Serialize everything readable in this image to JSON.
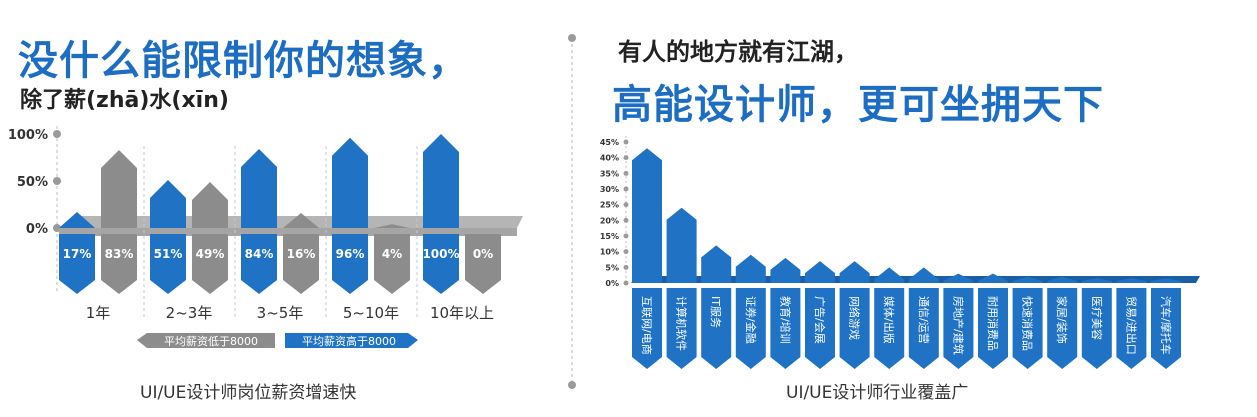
{
  "header_left": {
    "title": "没什么能限制你的想象，",
    "subtitle": "除了薪(zhā)水(xīn)"
  },
  "header_right": {
    "title": "有人的地方就有江湖，",
    "subtitle": "高能设计师，更可坐拥天下"
  },
  "colors": {
    "blue": "#1f72c4",
    "gray": "#8c8c8c",
    "title_blue": "#1d6ec2",
    "axis_dot": "#9a9a9a"
  },
  "chart_data": [
    {
      "type": "bar",
      "caption": "UI/UE设计师岗位薪资增速快",
      "categories": [
        "1年",
        "2~3年",
        "3~5年",
        "5~10年",
        "10年以上"
      ],
      "series": [
        {
          "name": "平均薪资高于8000",
          "color": "#1f72c4",
          "values": [
            17,
            51,
            84,
            96,
            100
          ],
          "labels": [
            "17%",
            "51%",
            "84%",
            "96%",
            "100%"
          ]
        },
        {
          "name": "平均薪资低于8000",
          "color": "#8c8c8c",
          "values": [
            83,
            49,
            16,
            4,
            0
          ],
          "labels": [
            "83%",
            "49%",
            "16%",
            "4%",
            "0%"
          ]
        }
      ],
      "yticks": [
        "0%",
        "50%",
        "100%"
      ],
      "ylim": [
        0,
        100
      ],
      "legend": [
        {
          "label": "平均薪资低于8000",
          "color": "#8c8c8c"
        },
        {
          "label": "平均薪资高于8000",
          "color": "#1f72c4"
        }
      ]
    },
    {
      "type": "bar",
      "caption": "UI/UE设计师行业覆盖广",
      "categories": [
        "互联网/电商",
        "计算机软件",
        "IT服务",
        "证券/金融",
        "教育/培训",
        "广告/会展",
        "网络游戏",
        "媒体/出版",
        "通信/运营",
        "房地产/建筑",
        "耐用消费品",
        "快速消费品",
        "家居/装饰",
        "医疗美容",
        "贸易/进出口",
        "汽车/摩托车"
      ],
      "values": [
        43,
        24,
        12,
        9,
        8,
        7,
        7,
        5,
        5,
        3,
        3,
        2,
        2,
        1.5,
        1.5,
        1.5
      ],
      "yticks": [
        "0%",
        "5%",
        "10%",
        "15%",
        "20%",
        "25%",
        "30%",
        "35%",
        "40%",
        "45%"
      ],
      "ylim": [
        0,
        45
      ],
      "color": "#1f72c4"
    }
  ]
}
